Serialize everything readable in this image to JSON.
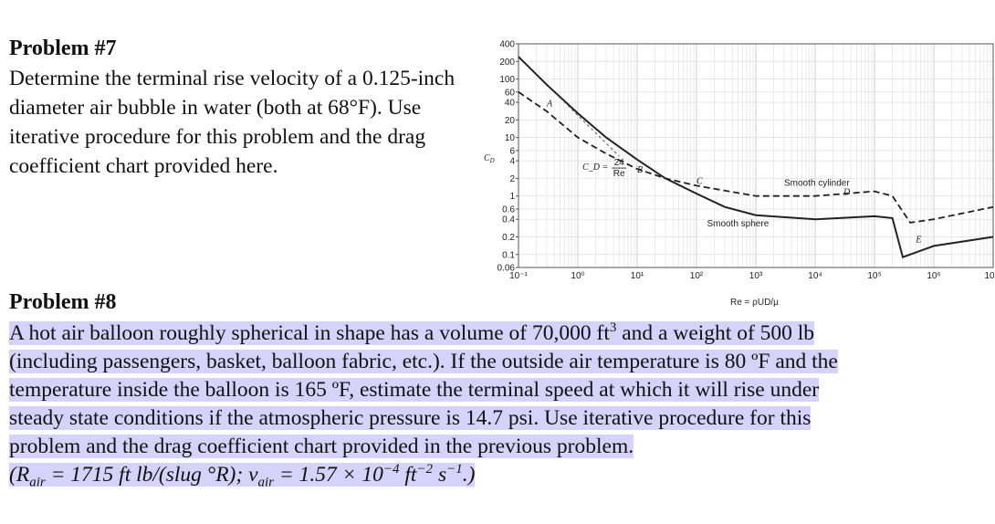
{
  "problem7": {
    "title": "Problem #7",
    "text": "Determine the terminal rise velocity of a 0.125-inch diameter air bubble in water (both at 68°F). Use iterative procedure for this problem and the drag coefficient chart provided here."
  },
  "problem8": {
    "title": "Problem #8",
    "line1_a": "A hot air balloon roughly spherical in shape has a volume of 70,000 ft",
    "line1_sup": "3",
    "line1_b": " and a weight of 500 lb",
    "line2": "(including passengers, basket, balloon fabric, etc.). If the outside air temperature is 80 ºF and the",
    "line3": "temperature inside the balloon is 165 ºF, estimate the terminal speed at which it will rise under",
    "line4": "steady state conditions if the atmospheric pressure is 14.7 psi. Use iterative procedure for this",
    "line5": "problem and the drag coefficient chart provided in the previous problem.",
    "line6_a": "(R",
    "line6_sub1": "air",
    "line6_b": " = 1715 ft lb/(slug °R); ν",
    "line6_sub2": "air",
    "line6_c": " = 1.57 × 10",
    "line6_sup1": "−4",
    "line6_d": " ft",
    "line6_sup2": "−2",
    "line6_e": " s",
    "line6_sup3": "−1",
    "line6_f": ".)"
  },
  "chart_data": {
    "type": "line",
    "ylabel": "C_D",
    "xlabel": "Re = ρUD/μ",
    "x_scale": "log",
    "y_scale": "log",
    "xlim": [
      0.1,
      10000000
    ],
    "ylim": [
      0.06,
      400
    ],
    "x_ticks": [
      "10⁻¹",
      "10⁰",
      "10¹",
      "10²",
      "10³",
      "10⁴",
      "10⁵",
      "10⁶",
      "10"
    ],
    "y_ticks": [
      "400",
      "200",
      "100",
      "60",
      "40",
      "20",
      "10",
      "6",
      "4",
      "2",
      "1",
      "0.6",
      "0.4",
      "0.2",
      "0.1",
      "0.06"
    ],
    "series": [
      {
        "name": "Smooth sphere",
        "style": "solid",
        "x": [
          0.1,
          0.3,
          1,
          3,
          10,
          30,
          100,
          300,
          1000,
          10000,
          100000,
          200000,
          300000,
          1000000,
          10000000
        ],
        "y": [
          240,
          80,
          26,
          10,
          4.2,
          2.0,
          1.1,
          0.65,
          0.47,
          0.4,
          0.45,
          0.42,
          0.09,
          0.14,
          0.2
        ]
      },
      {
        "name": "Smooth cylinder",
        "style": "dashed",
        "x": [
          0.1,
          0.3,
          1,
          3,
          10,
          30,
          100,
          1000,
          10000,
          100000,
          200000,
          400000,
          1000000,
          10000000
        ],
        "y": [
          60,
          28,
          10,
          5.3,
          2.9,
          2.0,
          1.5,
          1.0,
          1.0,
          1.2,
          1.0,
          0.35,
          0.4,
          0.65
        ]
      },
      {
        "name": "C_D = 24/Re",
        "style": "dashed-thin",
        "x": [
          0.5,
          5
        ],
        "y": [
          48,
          4.8
        ]
      }
    ],
    "annotations": [
      {
        "text": "A",
        "x": 0.3,
        "y": 34
      },
      {
        "text": "B",
        "x": 10,
        "y": 2.5
      },
      {
        "text": "C",
        "x": 100,
        "y": 1.6
      },
      {
        "text": "D",
        "x": 30000,
        "y": 1.05
      },
      {
        "text": "E",
        "x": 500000,
        "y": 0.16
      },
      {
        "text": "Smooth cylinder",
        "x": 3000,
        "y": 1.5
      },
      {
        "text": "Smooth sphere",
        "x": 150,
        "y": 0.3
      }
    ],
    "formula_label": {
      "lhs": "C_D =",
      "num": "24",
      "den": "Re"
    }
  }
}
